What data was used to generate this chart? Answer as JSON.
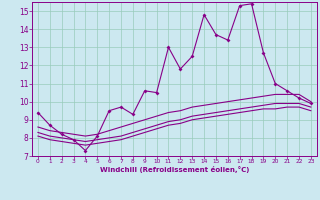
{
  "title": "",
  "xlabel": "Windchill (Refroidissement éolien,°C)",
  "xlim": [
    -0.5,
    23.5
  ],
  "ylim": [
    7,
    15.5
  ],
  "xticks": [
    0,
    1,
    2,
    3,
    4,
    5,
    6,
    7,
    8,
    9,
    10,
    11,
    12,
    13,
    14,
    15,
    16,
    17,
    18,
    19,
    20,
    21,
    22,
    23
  ],
  "yticks": [
    7,
    8,
    9,
    10,
    11,
    12,
    13,
    14,
    15
  ],
  "bg_color": "#cce8f0",
  "line_color": "#880088",
  "grid_color": "#99ccbb",
  "line1": {
    "x": [
      0,
      1,
      2,
      3,
      4,
      5,
      6,
      7,
      8,
      9,
      10,
      11,
      12,
      13,
      14,
      15,
      16,
      17,
      18,
      19,
      20,
      21,
      22,
      23
    ],
    "y": [
      9.4,
      8.7,
      8.2,
      7.9,
      7.3,
      8.1,
      9.5,
      9.7,
      9.3,
      10.6,
      10.5,
      13.0,
      11.8,
      12.5,
      14.8,
      13.7,
      13.4,
      15.3,
      15.4,
      12.7,
      11.0,
      10.6,
      10.2,
      9.9
    ]
  },
  "line2": {
    "x": [
      0,
      1,
      2,
      3,
      4,
      5,
      6,
      7,
      8,
      9,
      10,
      11,
      12,
      13,
      14,
      15,
      16,
      17,
      18,
      19,
      20,
      21,
      22,
      23
    ],
    "y": [
      8.6,
      8.4,
      8.3,
      8.2,
      8.1,
      8.2,
      8.4,
      8.6,
      8.8,
      9.0,
      9.2,
      9.4,
      9.5,
      9.7,
      9.8,
      9.9,
      10.0,
      10.1,
      10.2,
      10.3,
      10.4,
      10.4,
      10.4,
      10.0
    ]
  },
  "line3": {
    "x": [
      0,
      1,
      2,
      3,
      4,
      5,
      6,
      7,
      8,
      9,
      10,
      11,
      12,
      13,
      14,
      15,
      16,
      17,
      18,
      19,
      20,
      21,
      22,
      23
    ],
    "y": [
      8.3,
      8.1,
      8.0,
      7.9,
      7.8,
      7.9,
      8.0,
      8.1,
      8.3,
      8.5,
      8.7,
      8.9,
      9.0,
      9.2,
      9.3,
      9.4,
      9.5,
      9.6,
      9.7,
      9.8,
      9.9,
      9.9,
      9.9,
      9.7
    ]
  },
  "line4": {
    "x": [
      0,
      1,
      2,
      3,
      4,
      5,
      6,
      7,
      8,
      9,
      10,
      11,
      12,
      13,
      14,
      15,
      16,
      17,
      18,
      19,
      20,
      21,
      22,
      23
    ],
    "y": [
      8.1,
      7.9,
      7.8,
      7.7,
      7.6,
      7.7,
      7.8,
      7.9,
      8.1,
      8.3,
      8.5,
      8.7,
      8.8,
      9.0,
      9.1,
      9.2,
      9.3,
      9.4,
      9.5,
      9.6,
      9.6,
      9.7,
      9.7,
      9.5
    ]
  }
}
